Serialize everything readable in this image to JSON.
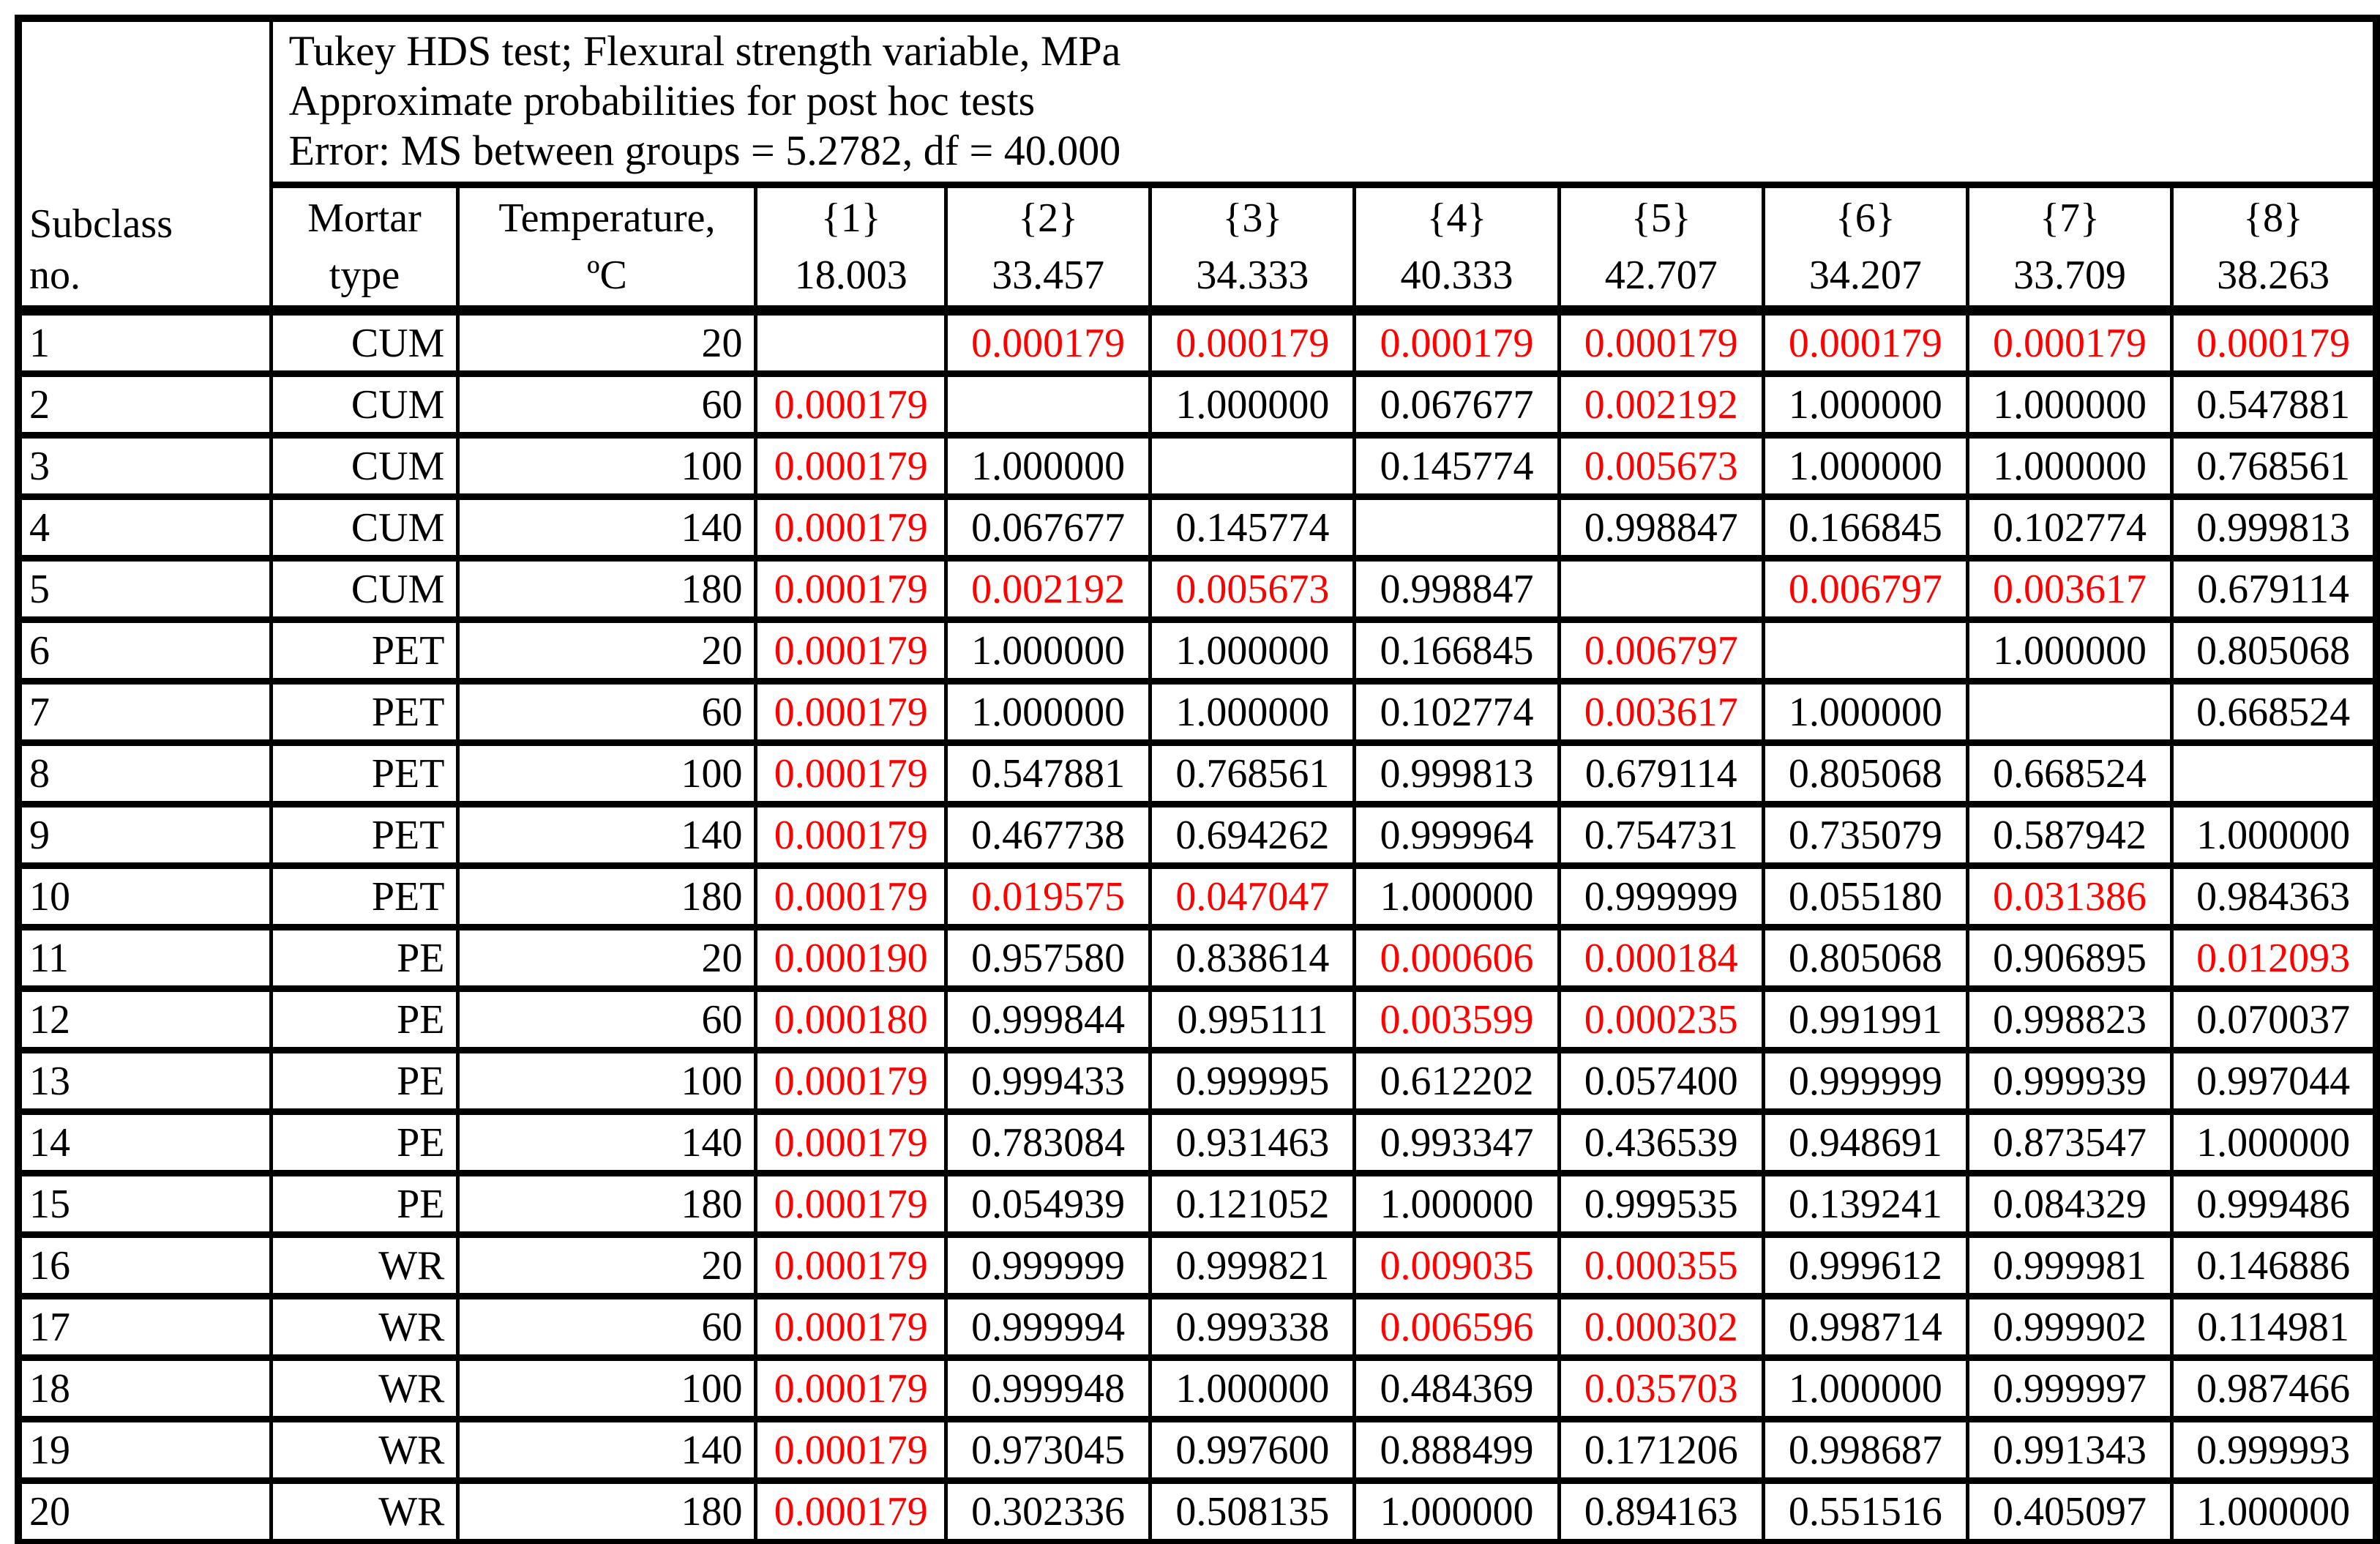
{
  "table": {
    "title_lines": [
      "Tukey HDS test; Flexural strength variable, MPa",
      "Approximate probabilities for post hoc tests",
      "Error: MS between groups = 5.2782, df = 40.000"
    ],
    "corner_header_lines": [
      "Subclass",
      "no."
    ],
    "column_headers": {
      "mortar_lines": [
        "Mortar",
        "type"
      ],
      "temperature_lines": [
        "Temperature,",
        "ºC"
      ],
      "groups": [
        {
          "id": "{1}",
          "mean": "18.003"
        },
        {
          "id": "{2}",
          "mean": "33.457"
        },
        {
          "id": "{3}",
          "mean": "34.333"
        },
        {
          "id": "{4}",
          "mean": "40.333"
        },
        {
          "id": "{5}",
          "mean": "42.707"
        },
        {
          "id": "{6}",
          "mean": "34.207"
        },
        {
          "id": "{7}",
          "mean": "33.709"
        },
        {
          "id": "{8}",
          "mean": "38.263"
        }
      ]
    },
    "colors": {
      "significant_red": "#ff0000",
      "text": "#000000",
      "border": "#000000",
      "background": "#ffffff"
    },
    "rows": [
      {
        "no": "1",
        "mortar": "CUM",
        "temp": "20",
        "values": [
          {
            "v": "",
            "red": false
          },
          {
            "v": "0.000179",
            "red": true
          },
          {
            "v": "0.000179",
            "red": true
          },
          {
            "v": "0.000179",
            "red": true
          },
          {
            "v": "0.000179",
            "red": true
          },
          {
            "v": "0.000179",
            "red": true
          },
          {
            "v": "0.000179",
            "red": true
          },
          {
            "v": "0.000179",
            "red": true
          }
        ]
      },
      {
        "no": "2",
        "mortar": "CUM",
        "temp": "60",
        "values": [
          {
            "v": "0.000179",
            "red": true
          },
          {
            "v": "",
            "red": false
          },
          {
            "v": "1.000000",
            "red": false
          },
          {
            "v": "0.067677",
            "red": false
          },
          {
            "v": "0.002192",
            "red": true
          },
          {
            "v": "1.000000",
            "red": false
          },
          {
            "v": "1.000000",
            "red": false
          },
          {
            "v": "0.547881",
            "red": false
          }
        ]
      },
      {
        "no": "3",
        "mortar": "CUM",
        "temp": "100",
        "values": [
          {
            "v": "0.000179",
            "red": true
          },
          {
            "v": "1.000000",
            "red": false
          },
          {
            "v": "",
            "red": false
          },
          {
            "v": "0.145774",
            "red": false
          },
          {
            "v": "0.005673",
            "red": true
          },
          {
            "v": "1.000000",
            "red": false
          },
          {
            "v": "1.000000",
            "red": false
          },
          {
            "v": "0.768561",
            "red": false
          }
        ]
      },
      {
        "no": "4",
        "mortar": "CUM",
        "temp": "140",
        "values": [
          {
            "v": "0.000179",
            "red": true
          },
          {
            "v": "0.067677",
            "red": false
          },
          {
            "v": "0.145774",
            "red": false
          },
          {
            "v": "",
            "red": false
          },
          {
            "v": "0.998847",
            "red": false
          },
          {
            "v": "0.166845",
            "red": false
          },
          {
            "v": "0.102774",
            "red": false
          },
          {
            "v": "0.999813",
            "red": false
          }
        ]
      },
      {
        "no": "5",
        "mortar": "CUM",
        "temp": "180",
        "values": [
          {
            "v": "0.000179",
            "red": true
          },
          {
            "v": "0.002192",
            "red": true
          },
          {
            "v": "0.005673",
            "red": true
          },
          {
            "v": "0.998847",
            "red": false
          },
          {
            "v": "",
            "red": false
          },
          {
            "v": "0.006797",
            "red": true
          },
          {
            "v": "0.003617",
            "red": true
          },
          {
            "v": "0.679114",
            "red": false
          }
        ]
      },
      {
        "no": "6",
        "mortar": "PET",
        "temp": "20",
        "values": [
          {
            "v": "0.000179",
            "red": true
          },
          {
            "v": "1.000000",
            "red": false
          },
          {
            "v": "1.000000",
            "red": false
          },
          {
            "v": "0.166845",
            "red": false
          },
          {
            "v": "0.006797",
            "red": true
          },
          {
            "v": "",
            "red": false
          },
          {
            "v": "1.000000",
            "red": false
          },
          {
            "v": "0.805068",
            "red": false
          }
        ]
      },
      {
        "no": "7",
        "mortar": "PET",
        "temp": "60",
        "values": [
          {
            "v": "0.000179",
            "red": true
          },
          {
            "v": "1.000000",
            "red": false
          },
          {
            "v": "1.000000",
            "red": false
          },
          {
            "v": "0.102774",
            "red": false
          },
          {
            "v": "0.003617",
            "red": true
          },
          {
            "v": "1.000000",
            "red": false
          },
          {
            "v": "",
            "red": false
          },
          {
            "v": "0.668524",
            "red": false
          }
        ]
      },
      {
        "no": "8",
        "mortar": "PET",
        "temp": "100",
        "values": [
          {
            "v": "0.000179",
            "red": true
          },
          {
            "v": "0.547881",
            "red": false
          },
          {
            "v": "0.768561",
            "red": false
          },
          {
            "v": "0.999813",
            "red": false
          },
          {
            "v": "0.679114",
            "red": false
          },
          {
            "v": "0.805068",
            "red": false
          },
          {
            "v": "0.668524",
            "red": false
          },
          {
            "v": "",
            "red": false
          }
        ]
      },
      {
        "no": "9",
        "mortar": "PET",
        "temp": "140",
        "values": [
          {
            "v": "0.000179",
            "red": true
          },
          {
            "v": "0.467738",
            "red": false
          },
          {
            "v": "0.694262",
            "red": false
          },
          {
            "v": "0.999964",
            "red": false
          },
          {
            "v": "0.754731",
            "red": false
          },
          {
            "v": "0.735079",
            "red": false
          },
          {
            "v": "0.587942",
            "red": false
          },
          {
            "v": "1.000000",
            "red": false
          }
        ]
      },
      {
        "no": "10",
        "mortar": "PET",
        "temp": "180",
        "values": [
          {
            "v": "0.000179",
            "red": true
          },
          {
            "v": "0.019575",
            "red": true
          },
          {
            "v": "0.047047",
            "red": true
          },
          {
            "v": "1.000000",
            "red": false
          },
          {
            "v": "0.999999",
            "red": false
          },
          {
            "v": "0.055180",
            "red": false
          },
          {
            "v": "0.031386",
            "red": true
          },
          {
            "v": "0.984363",
            "red": false
          }
        ]
      },
      {
        "no": "11",
        "mortar": "PE",
        "temp": "20",
        "values": [
          {
            "v": "0.000190",
            "red": true
          },
          {
            "v": "0.957580",
            "red": false
          },
          {
            "v": "0.838614",
            "red": false
          },
          {
            "v": "0.000606",
            "red": true
          },
          {
            "v": "0.000184",
            "red": true
          },
          {
            "v": "0.805068",
            "red": false
          },
          {
            "v": "0.906895",
            "red": false
          },
          {
            "v": "0.012093",
            "red": true
          }
        ]
      },
      {
        "no": "12",
        "mortar": "PE",
        "temp": "60",
        "values": [
          {
            "v": "0.000180",
            "red": true
          },
          {
            "v": "0.999844",
            "red": false
          },
          {
            "v": "0.995111",
            "red": false
          },
          {
            "v": "0.003599",
            "red": true
          },
          {
            "v": "0.000235",
            "red": true
          },
          {
            "v": "0.991991",
            "red": false
          },
          {
            "v": "0.998823",
            "red": false
          },
          {
            "v": "0.070037",
            "red": false
          }
        ]
      },
      {
        "no": "13",
        "mortar": "PE",
        "temp": "100",
        "values": [
          {
            "v": "0.000179",
            "red": true
          },
          {
            "v": "0.999433",
            "red": false
          },
          {
            "v": "0.999995",
            "red": false
          },
          {
            "v": "0.612202",
            "red": false
          },
          {
            "v": "0.057400",
            "red": false
          },
          {
            "v": "0.999999",
            "red": false
          },
          {
            "v": "0.999939",
            "red": false
          },
          {
            "v": "0.997044",
            "red": false
          }
        ]
      },
      {
        "no": "14",
        "mortar": "PE",
        "temp": "140",
        "values": [
          {
            "v": "0.000179",
            "red": true
          },
          {
            "v": "0.783084",
            "red": false
          },
          {
            "v": "0.931463",
            "red": false
          },
          {
            "v": "0.993347",
            "red": false
          },
          {
            "v": "0.436539",
            "red": false
          },
          {
            "v": "0.948691",
            "red": false
          },
          {
            "v": "0.873547",
            "red": false
          },
          {
            "v": "1.000000",
            "red": false
          }
        ]
      },
      {
        "no": "15",
        "mortar": "PE",
        "temp": "180",
        "values": [
          {
            "v": "0.000179",
            "red": true
          },
          {
            "v": "0.054939",
            "red": false
          },
          {
            "v": "0.121052",
            "red": false
          },
          {
            "v": "1.000000",
            "red": false
          },
          {
            "v": "0.999535",
            "red": false
          },
          {
            "v": "0.139241",
            "red": false
          },
          {
            "v": "0.084329",
            "red": false
          },
          {
            "v": "0.999486",
            "red": false
          }
        ]
      },
      {
        "no": "16",
        "mortar": "WR",
        "temp": "20",
        "values": [
          {
            "v": "0.000179",
            "red": true
          },
          {
            "v": "0.999999",
            "red": false
          },
          {
            "v": "0.999821",
            "red": false
          },
          {
            "v": "0.009035",
            "red": true
          },
          {
            "v": "0.000355",
            "red": true
          },
          {
            "v": "0.999612",
            "red": false
          },
          {
            "v": "0.999981",
            "red": false
          },
          {
            "v": "0.146886",
            "red": false
          }
        ]
      },
      {
        "no": "17",
        "mortar": "WR",
        "temp": "60",
        "values": [
          {
            "v": "0.000179",
            "red": true
          },
          {
            "v": "0.999994",
            "red": false
          },
          {
            "v": "0.999338",
            "red": false
          },
          {
            "v": "0.006596",
            "red": true
          },
          {
            "v": "0.000302",
            "red": true
          },
          {
            "v": "0.998714",
            "red": false
          },
          {
            "v": "0.999902",
            "red": false
          },
          {
            "v": "0.114981",
            "red": false
          }
        ]
      },
      {
        "no": "18",
        "mortar": "WR",
        "temp": "100",
        "values": [
          {
            "v": "0.000179",
            "red": true
          },
          {
            "v": "0.999948",
            "red": false
          },
          {
            "v": "1.000000",
            "red": false
          },
          {
            "v": "0.484369",
            "red": false
          },
          {
            "v": "0.035703",
            "red": true
          },
          {
            "v": "1.000000",
            "red": false
          },
          {
            "v": "0.999997",
            "red": false
          },
          {
            "v": "0.987466",
            "red": false
          }
        ]
      },
      {
        "no": "19",
        "mortar": "WR",
        "temp": "140",
        "values": [
          {
            "v": "0.000179",
            "red": true
          },
          {
            "v": "0.973045",
            "red": false
          },
          {
            "v": "0.997600",
            "red": false
          },
          {
            "v": "0.888499",
            "red": false
          },
          {
            "v": "0.171206",
            "red": false
          },
          {
            "v": "0.998687",
            "red": false
          },
          {
            "v": "0.991343",
            "red": false
          },
          {
            "v": "0.999993",
            "red": false
          }
        ]
      },
      {
        "no": "20",
        "mortar": "WR",
        "temp": "180",
        "values": [
          {
            "v": "0.000179",
            "red": true
          },
          {
            "v": "0.302336",
            "red": false
          },
          {
            "v": "0.508135",
            "red": false
          },
          {
            "v": "1.000000",
            "red": false
          },
          {
            "v": "0.894163",
            "red": false
          },
          {
            "v": "0.551516",
            "red": false
          },
          {
            "v": "0.405097",
            "red": false
          },
          {
            "v": "1.000000",
            "red": false
          }
        ]
      }
    ]
  }
}
